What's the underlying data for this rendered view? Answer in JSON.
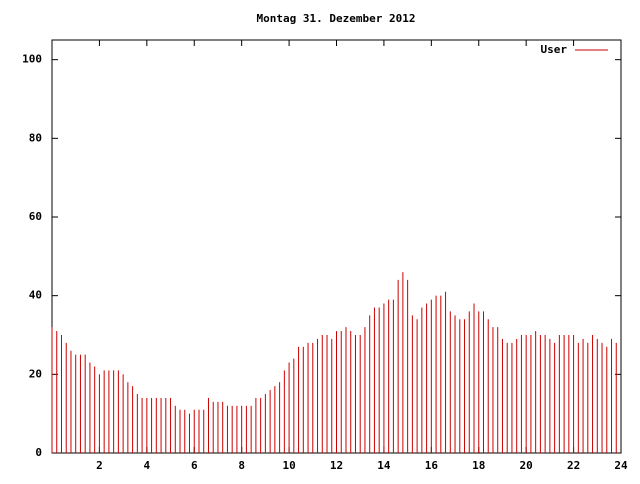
{
  "chart_data": {
    "type": "impulse",
    "title": "Montag 31. Dezember 2012",
    "x": [
      0,
      0.2,
      0.4,
      0.6,
      0.8,
      1,
      1.2,
      1.4,
      1.6,
      1.8,
      2,
      2.2,
      2.4,
      2.6,
      2.8,
      3,
      3.2,
      3.4,
      3.6,
      3.8,
      4,
      4.2,
      4.4,
      4.6,
      4.8,
      5,
      5.2,
      5.4,
      5.6,
      5.8,
      6,
      6.2,
      6.4,
      6.6,
      6.8,
      7,
      7.2,
      7.4,
      7.6,
      7.8,
      8,
      8.2,
      8.4,
      8.6,
      8.8,
      9,
      9.2,
      9.4,
      9.6,
      9.8,
      10,
      10.2,
      10.4,
      10.6,
      10.8,
      11,
      11.2,
      11.4,
      11.6,
      11.8,
      12,
      12.2,
      12.4,
      12.6,
      12.8,
      13,
      13.2,
      13.4,
      13.6,
      13.8,
      14,
      14.2,
      14.4,
      14.6,
      14.8,
      15,
      15.2,
      15.4,
      15.6,
      15.8,
      16,
      16.2,
      16.4,
      16.6,
      16.8,
      17,
      17.2,
      17.4,
      17.6,
      17.8,
      18,
      18.2,
      18.4,
      18.6,
      18.8,
      19,
      19.2,
      19.4,
      19.6,
      19.8,
      20,
      20.2,
      20.4,
      20.6,
      20.8,
      21,
      21.2,
      21.4,
      21.6,
      21.8,
      22,
      22.2,
      22.4,
      22.6,
      22.8,
      23,
      23.2,
      23.4,
      23.6,
      23.8
    ],
    "series": [
      {
        "name": "User",
        "color": "#cc0000",
        "values": [
          32,
          31,
          30,
          28,
          26,
          25,
          25,
          25,
          23,
          22,
          20,
          21,
          21,
          21,
          21,
          20,
          18,
          17,
          15,
          14,
          14,
          14,
          14,
          14,
          14,
          14,
          12,
          11,
          11,
          10,
          11,
          11,
          11,
          14,
          13,
          13,
          13,
          12,
          12,
          12,
          12,
          12,
          12,
          14,
          14,
          15,
          16,
          17,
          18,
          21,
          23,
          24,
          27,
          27,
          28,
          28,
          29,
          30,
          30,
          29,
          31,
          31,
          32,
          31,
          30,
          30,
          32,
          35,
          37,
          37,
          38,
          39,
          39,
          44,
          46,
          44,
          35,
          34,
          37,
          38,
          39,
          40,
          40,
          41,
          36,
          35,
          34,
          34,
          36,
          38,
          36,
          36,
          34,
          32,
          32,
          29,
          28,
          28,
          29,
          30,
          30,
          30,
          31,
          30,
          30,
          29,
          28,
          30,
          30,
          30,
          30,
          28,
          29,
          28,
          30,
          29,
          28,
          27,
          29,
          28
        ]
      }
    ],
    "xlim": [
      0,
      24
    ],
    "xticks": [
      2,
      4,
      6,
      8,
      10,
      12,
      14,
      16,
      18,
      20,
      22,
      24
    ],
    "ylim": [
      0,
      105
    ],
    "yticks": [
      0,
      20,
      40,
      60,
      80,
      100
    ],
    "legend": "top-right"
  }
}
